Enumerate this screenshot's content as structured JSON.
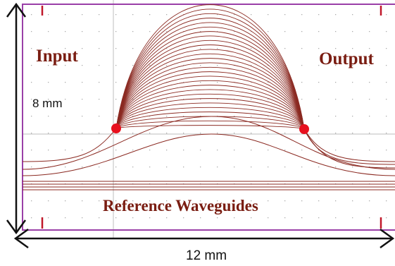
{
  "labels": {
    "input": "Input",
    "output": "Output",
    "height": "8 mm",
    "width": "12 mm",
    "reference": "Reference Waveguides"
  },
  "colors": {
    "waveguide": "#8b2a22",
    "frame": "#9a3fa8",
    "marker": "#c0182a",
    "port": "#e8101e",
    "grid_dot": "#a9a9a9",
    "axis": "#111111"
  },
  "structure": {
    "arc_waveguide_count": 28,
    "reference_waveguide_count": 6,
    "port_count": 2
  }
}
